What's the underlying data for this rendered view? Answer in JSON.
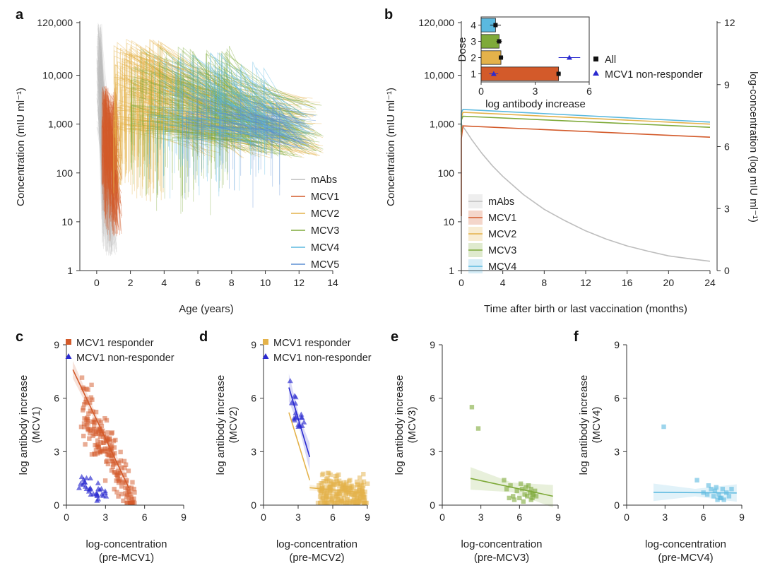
{
  "colors": {
    "mAbs": "#bdbdbd",
    "MCV1": "#d35a2a",
    "MCV2": "#e4b24a",
    "MCV3": "#7faa3a",
    "MCV4": "#5bb9df",
    "MCV5": "#5b8fd3",
    "nonresponder": "#2a2ad0",
    "all": "#111111"
  },
  "chart_data": [
    {
      "panel": "a",
      "type": "line",
      "xlabel": "Age (years)",
      "ylabel": "Concentration (mIU ml⁻¹)",
      "xlim": [
        -1,
        14
      ],
      "ylim": [
        1,
        120000
      ],
      "yscale": "log",
      "xticks": [
        0,
        2,
        4,
        6,
        8,
        10,
        12,
        14
      ],
      "xtick_labels": [
        "0",
        "2",
        "4",
        "6",
        "8",
        "10",
        "12",
        "14"
      ],
      "yticks": [
        1,
        10,
        100,
        1000,
        10000,
        120000
      ],
      "ytick_labels": [
        "1",
        "10",
        "100",
        "1,000",
        "10,000",
        "120,000"
      ],
      "legend_position": "bottom-right",
      "series": [
        {
          "name": "mAbs",
          "key": "mAbs",
          "start_age": [
            0,
            0.3
          ],
          "start_conc": [
            800,
            120000
          ],
          "end_age": [
            0.3,
            1.2
          ],
          "end_conc": [
            2,
            60
          ]
        },
        {
          "name": "MCV1",
          "key": "MCV1",
          "start_age": [
            0.3,
            1.2
          ],
          "start_conc": [
            200,
            6000
          ],
          "end_age": [
            0.5,
            1.5
          ],
          "end_conc": [
            5,
            3000
          ]
        },
        {
          "name": "MCV2",
          "key": "MCV2",
          "start_age": [
            1,
            4
          ],
          "start_conc": [
            800,
            60000
          ],
          "end_age": [
            6,
            13.5
          ],
          "end_conc": [
            200,
            4000
          ]
        },
        {
          "name": "MCV3",
          "key": "MCV3",
          "start_age": [
            2,
            8
          ],
          "start_conc": [
            500,
            40000
          ],
          "end_age": [
            8,
            13.5
          ],
          "end_conc": [
            200,
            3000
          ]
        },
        {
          "name": "MCV4",
          "key": "MCV4",
          "start_age": [
            3,
            10
          ],
          "start_conc": [
            500,
            30000
          ],
          "end_age": [
            9,
            13
          ],
          "end_conc": [
            300,
            2000
          ]
        },
        {
          "name": "MCV5",
          "key": "MCV5",
          "start_age": [
            5,
            11
          ],
          "start_conc": [
            800,
            5000
          ],
          "end_age": [
            10,
            13
          ],
          "end_conc": [
            300,
            1500
          ]
        }
      ]
    },
    {
      "panel": "b",
      "type": "line",
      "xlabel": "Time after birth or last vaccination (months)",
      "ylabel": "Concentration (mIU ml⁻¹)",
      "ylabel_right": "log-concentration (log mIU ml⁻¹)",
      "xlim": [
        0,
        24
      ],
      "ylim": [
        1,
        120000
      ],
      "yscale": "log",
      "xticks": [
        0,
        4,
        8,
        12,
        16,
        20,
        24
      ],
      "xtick_labels": [
        "0",
        "4",
        "8",
        "12",
        "16",
        "20",
        "24"
      ],
      "yticks": [
        1,
        10,
        100,
        1000,
        10000,
        120000
      ],
      "ytick_labels": [
        "1",
        "10",
        "100",
        "1,000",
        "10,000",
        "120,000"
      ],
      "yticks_right": [
        "0",
        "3",
        "6",
        "9",
        "12"
      ],
      "legend_position": "bottom-left",
      "series": [
        {
          "name": "mAbs",
          "key": "mAbs",
          "x": [
            0,
            0.5,
            1,
            2,
            3,
            4,
            6,
            8,
            10,
            12,
            14,
            16,
            18,
            20,
            22,
            24
          ],
          "y": [
            1000,
            700,
            480,
            250,
            140,
            85,
            36,
            18,
            10.5,
            6.5,
            4.4,
            3.2,
            2.5,
            2.0,
            1.75,
            1.55
          ]
        },
        {
          "name": "MCV1",
          "key": "MCV1",
          "x": [
            0,
            0,
            0.15,
            24
          ],
          "y": [
            13,
            500,
            920,
            540
          ]
        },
        {
          "name": "MCV2",
          "key": "MCV2",
          "x": [
            0,
            0,
            0.15,
            24
          ],
          "y": [
            600,
            1350,
            1750,
            1000
          ]
        },
        {
          "name": "MCV3",
          "key": "MCV3",
          "x": [
            0,
            0,
            0.15,
            24
          ],
          "y": [
            700,
            1200,
            1450,
            860
          ]
        },
        {
          "name": "MCV4",
          "key": "MCV4",
          "x": [
            0,
            0,
            0.15,
            24
          ],
          "y": [
            900,
            1700,
            2000,
            1100
          ]
        }
      ]
    },
    {
      "panel": "b-inset",
      "type": "bar",
      "orientation": "horizontal",
      "xlabel": "log antibody increase",
      "ylabel": "Dose",
      "xlim": [
        0,
        6
      ],
      "xticks": [
        0,
        3,
        6
      ],
      "xtick_labels": [
        "0",
        "3",
        "6"
      ],
      "categories": [
        "1",
        "2",
        "3",
        "4"
      ],
      "bar_keys": [
        "MCV1",
        "MCV2",
        "MCV3",
        "MCV4"
      ],
      "series": [
        {
          "name": "All",
          "values": [
            4.3,
            1.1,
            1.0,
            0.8
          ],
          "err": [
            0.12,
            0.12,
            0.15,
            0.3
          ]
        },
        {
          "name": "MCV1 non-responder",
          "values": [
            0.7,
            4.9,
            null,
            null
          ],
          "err": [
            0.25,
            0.6,
            null,
            null
          ]
        }
      ],
      "legend_position": "right"
    },
    {
      "panel": "c",
      "type": "scatter",
      "xlabel": "log-concentration",
      "xlabel2": "(pre-MCV1)",
      "ylabel": "log antibody increase",
      "ylabel2": "(MCV1)",
      "xlim": [
        0,
        9
      ],
      "ylim": [
        0,
        9
      ],
      "xticks": [
        0,
        3,
        6,
        9
      ],
      "yticks": [
        0,
        3,
        6,
        9
      ],
      "legend": [
        "MCV1 responder",
        "MCV1 non-responder"
      ],
      "responder_key": "MCV1",
      "clusters": [
        {
          "group": "responder",
          "key": "MCV1",
          "marker": "square",
          "n": 190,
          "x_range": [
            1.2,
            5.2
          ],
          "y_line": [
            7.55,
            -1.42
          ],
          "spread": 0.75
        },
        {
          "group": "non",
          "key": "nonresponder",
          "marker": "triangle",
          "n": 32,
          "x_range": [
            1.0,
            3.4
          ],
          "y_line": [
            1.5,
            -0.3
          ],
          "spread": 0.35
        }
      ],
      "fits": [
        {
          "key": "MCV1",
          "x": [
            0.5,
            4.8
          ],
          "y": [
            7.6,
            0.95
          ],
          "band": 0.35
        }
      ]
    },
    {
      "panel": "d",
      "type": "scatter",
      "xlabel": "log-concentration",
      "xlabel2": "(pre-MCV2)",
      "ylabel": "log antibody increase",
      "ylabel2": "(MCV2)",
      "xlim": [
        0,
        9
      ],
      "ylim": [
        0,
        9
      ],
      "xticks": [
        0,
        3,
        6,
        9
      ],
      "yticks": [
        0,
        3,
        6,
        9
      ],
      "legend": [
        "MCV1 responder",
        "MCV1 non-responder"
      ],
      "responder_key": "MCV2",
      "clusters": [
        {
          "group": "responder",
          "key": "MCV2",
          "marker": "square",
          "n": 230,
          "x_range": [
            4.8,
            8.9
          ],
          "y_line": [
            1.3,
            -0.1
          ],
          "spread": 0.55
        },
        {
          "group": "non",
          "key": "nonresponder",
          "marker": "triangle",
          "n": 18,
          "x_range": [
            2.3,
            3.7
          ],
          "y_line": [
            9.6,
            -1.5
          ],
          "spread": 0.45
        }
      ],
      "fits": [
        {
          "key": "MCV2",
          "x": [
            4.0,
            8.8
          ],
          "y": [
            0.98,
            0.68
          ],
          "band": 0.12
        },
        {
          "key": "MCV2",
          "x": [
            2.2,
            4.0
          ],
          "y": [
            5.2,
            1.4
          ],
          "band": 0.0
        },
        {
          "key": "nonresponder",
          "x": [
            2.2,
            4.0
          ],
          "y": [
            6.6,
            2.7
          ],
          "band": 0.55
        }
      ]
    },
    {
      "panel": "e",
      "type": "scatter",
      "xlabel": "log-concentration",
      "xlabel2": "(pre-MCV3)",
      "ylabel": "log antibody increase",
      "ylabel2": "(MCV3)",
      "xlim": [
        0,
        9
      ],
      "ylim": [
        0,
        9
      ],
      "xticks": [
        0,
        3,
        6,
        9
      ],
      "yticks": [
        0,
        3,
        6,
        9
      ],
      "legend": [],
      "points": {
        "key": "MCV3",
        "marker": "square",
        "x": [
          2.3,
          2.8,
          4.8,
          5.0,
          5.3,
          5.5,
          5.8,
          6.0,
          6.1,
          6.2,
          6.4,
          6.5,
          6.6,
          6.8,
          6.9,
          7.0,
          7.1,
          7.2,
          7.3,
          5.6,
          6.3,
          6.7,
          7.0,
          5.2,
          6.9
        ],
        "y": [
          5.5,
          4.3,
          1.4,
          0.9,
          1.1,
          0.5,
          0.8,
          0.4,
          1.2,
          0.9,
          0.6,
          1.0,
          0.5,
          0.7,
          0.9,
          0.4,
          0.6,
          0.8,
          0.5,
          0.3,
          0.2,
          1.1,
          0.6,
          0.4,
          0.3
        ]
      },
      "fits": [
        {
          "key": "MCV3",
          "x": [
            2.2,
            8.6
          ],
          "y": [
            1.5,
            0.5
          ],
          "band": 0.45
        }
      ]
    },
    {
      "panel": "f",
      "type": "scatter",
      "xlabel": "log-concentration",
      "xlabel2": "(pre-MCV4)",
      "ylabel": "log antibody increase",
      "ylabel2": "(MCV4)",
      "xlim": [
        0,
        9
      ],
      "ylim": [
        0,
        9
      ],
      "xticks": [
        0,
        3,
        6,
        9
      ],
      "yticks": [
        0,
        3,
        6,
        9
      ],
      "legend": [],
      "points": {
        "key": "MCV4",
        "marker": "square",
        "x": [
          2.9,
          5.5,
          6.0,
          6.4,
          6.6,
          6.8,
          6.9,
          7.0,
          7.2,
          7.3,
          7.5,
          7.6,
          7.8,
          8.0,
          6.3,
          7.1,
          7.4,
          8.2
        ],
        "y": [
          4.4,
          1.4,
          0.7,
          1.1,
          0.9,
          0.5,
          0.8,
          1.0,
          0.6,
          0.4,
          0.9,
          0.3,
          0.7,
          0.5,
          0.6,
          0.3,
          0.4,
          0.9
        ]
      },
      "fits": [
        {
          "key": "MCV4",
          "x": [
            2.1,
            8.6
          ],
          "y": [
            0.72,
            0.68
          ],
          "band": 0.35
        }
      ]
    }
  ]
}
